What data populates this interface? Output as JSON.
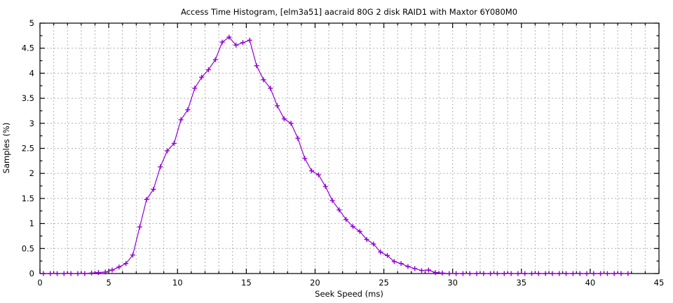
{
  "chart_data": {
    "type": "line",
    "title": "Access Time Histogram, [elm3a51] aacraid 80G 2 disk RAID1 with Maxtor 6Y080M0",
    "xlabel": "Seek Speed (ms)",
    "ylabel": "Samples (%)",
    "xlim": [
      0,
      45
    ],
    "ylim": [
      0,
      5
    ],
    "x_major_tick_step": 5,
    "x_minor_tick_step": 1,
    "y_major_tick_step": 0.5,
    "y_minor_tick_step": 0.25,
    "xtick_labels": [
      "0",
      "5",
      "10",
      "15",
      "20",
      "25",
      "30",
      "35",
      "40",
      "45"
    ],
    "ytick_labels": [
      "0",
      "0.5",
      "1",
      "1.5",
      "2",
      "2.5",
      "3",
      "3.5",
      "4",
      "4.5",
      "5"
    ],
    "grid": "dashed gray: vertical every 1 ms, horizontal every 0.5 %",
    "legend_position": "none",
    "marker": "plus",
    "line_color": "#9400d3",
    "grid_color": "#b0b0b0",
    "border_color": "#000000",
    "series": [
      {
        "name": "samples",
        "x": [
          0.25,
          0.75,
          1.25,
          1.75,
          2.25,
          2.75,
          3.25,
          3.75,
          4.25,
          4.75,
          5.25,
          5.75,
          6.25,
          6.75,
          7.25,
          7.75,
          8.25,
          8.75,
          9.25,
          9.75,
          10.25,
          10.75,
          11.25,
          11.75,
          12.25,
          12.75,
          13.25,
          13.75,
          14.25,
          14.75,
          15.25,
          15.75,
          16.25,
          16.75,
          17.25,
          17.75,
          18.25,
          18.75,
          19.25,
          19.75,
          20.25,
          20.75,
          21.25,
          21.75,
          22.25,
          22.75,
          23.25,
          23.75,
          24.25,
          24.75,
          25.25,
          25.75,
          26.25,
          26.75,
          27.25,
          27.75,
          28.25,
          28.75,
          29.25,
          29.75,
          30.25,
          30.75,
          31.25,
          31.75,
          32.25,
          32.75,
          33.25,
          33.75,
          34.25,
          34.75,
          35.25,
          35.75,
          36.25,
          36.75,
          37.25,
          37.75,
          38.25,
          38.75,
          39.25,
          39.75,
          40.25,
          40.75,
          41.25,
          41.75,
          42.25,
          42.75
        ],
        "y": [
          0,
          0,
          0,
          0,
          0,
          0,
          0,
          0.01,
          0.02,
          0.03,
          0.07,
          0.13,
          0.2,
          0.37,
          0.93,
          1.48,
          1.68,
          2.13,
          2.45,
          2.6,
          3.07,
          3.27,
          3.7,
          3.92,
          4.07,
          4.27,
          4.62,
          4.72,
          4.56,
          4.61,
          4.66,
          4.15,
          3.87,
          3.7,
          3.35,
          3.09,
          3.0,
          2.7,
          2.3,
          2.05,
          1.97,
          1.74,
          1.46,
          1.27,
          1.08,
          0.94,
          0.84,
          0.68,
          0.59,
          0.43,
          0.36,
          0.24,
          0.2,
          0.14,
          0.1,
          0.06,
          0.07,
          0.02,
          0.01,
          0,
          0,
          0,
          0,
          0,
          0,
          0,
          0,
          0,
          0,
          0,
          0,
          0,
          0,
          0,
          0,
          0,
          0,
          0,
          0,
          0,
          0,
          0,
          0,
          0,
          0,
          0
        ]
      }
    ]
  }
}
